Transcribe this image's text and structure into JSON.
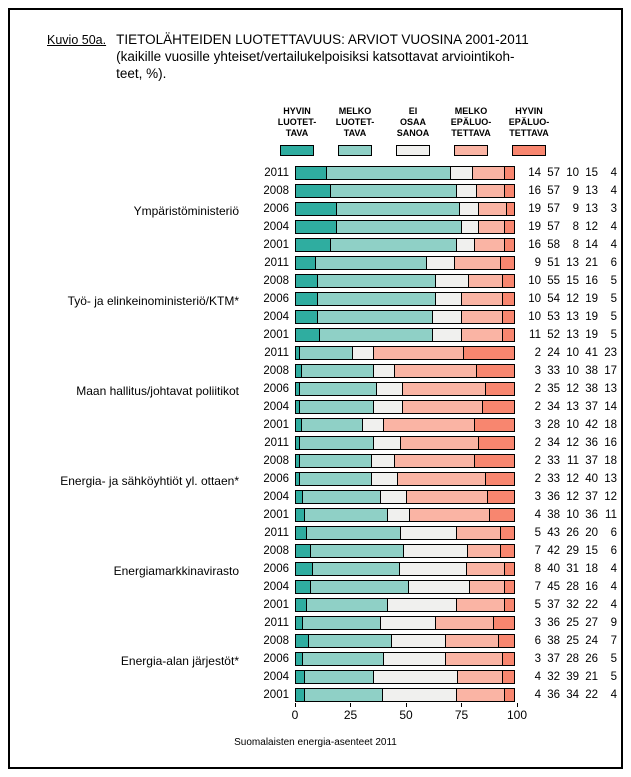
{
  "figure_label": "Kuvio 50a.",
  "title": {
    "line1": "TIETOLÄHTEIDEN LUOTETTAVUUS: ARVIOT VUOSINA 2001-2011",
    "line2": "(kaikille vuosille yhteiset/vertailukelpoisiksi katsottavat arviointikoh-",
    "line3": "teet, %)."
  },
  "footer": "Suomalaisten energia-asenteet 2011",
  "colors": {
    "hyvin_luotettava": "#2FADA0",
    "melko_luotettava": "#8FD0C6",
    "ei_osaa_sanoa": "#F0F0EE",
    "melko_epaluotettava": "#FAB4A4",
    "hyvin_epaluotettava": "#F8866F",
    "border": "#000000"
  },
  "chart_data": {
    "type": "bar",
    "orientation": "horizontal-stacked",
    "unit": "%",
    "xlim": [
      0,
      100
    ],
    "x_ticks": [
      "0",
      "25",
      "50",
      "75",
      "100"
    ],
    "grid": false,
    "legend_position": "top",
    "series_names": [
      "HYVIN LUOTETTAVA",
      "MELKO LUOTETTAVA",
      "EI OSAA SANOA",
      "MELKO EPÄLUOTETTAVA",
      "HYVIN EPÄLUOTETTAVA"
    ],
    "series_keys": [
      "hyvin-luotettava",
      "melko-luotettava",
      "ei-osaa-sanoa",
      "melko-epaluotettava",
      "hyvin-epaluotettava"
    ],
    "legend": [
      {
        "lines": [
          "HYVIN",
          "LUOTET-",
          "TAVA"
        ],
        "color": "#2FADA0"
      },
      {
        "lines": [
          "MELKO",
          "LUOTET-",
          "TAVA"
        ],
        "color": "#8FD0C6"
      },
      {
        "lines": [
          "EI",
          "OSAA",
          "SANOA"
        ],
        "color": "#F0F0EE"
      },
      {
        "lines": [
          "MELKO",
          "EPÄLUO-",
          "TETTAVA"
        ],
        "color": "#FAB4A4"
      },
      {
        "lines": [
          "HYVIN",
          "EPÄLUO-",
          "TETTAVA"
        ],
        "color": "#F8866F"
      }
    ],
    "groups": [
      {
        "label": "Ympäristöministeriö",
        "rows": [
          {
            "year": "2011",
            "values": [
              14,
              57,
              10,
              15,
              4
            ]
          },
          {
            "year": "2008",
            "values": [
              16,
              57,
              9,
              13,
              4
            ]
          },
          {
            "year": "2006",
            "values": [
              19,
              57,
              9,
              13,
              3
            ]
          },
          {
            "year": "2004",
            "values": [
              19,
              57,
              8,
              12,
              4
            ]
          },
          {
            "year": "2001",
            "values": [
              16,
              58,
              8,
              14,
              4
            ]
          }
        ]
      },
      {
        "label": "Työ- ja elinkeinoministeriö/KTM*",
        "rows": [
          {
            "year": "2011",
            "values": [
              9,
              51,
              13,
              21,
              6
            ]
          },
          {
            "year": "2008",
            "values": [
              10,
              55,
              15,
              16,
              5
            ]
          },
          {
            "year": "2006",
            "values": [
              10,
              54,
              12,
              19,
              5
            ]
          },
          {
            "year": "2004",
            "values": [
              10,
              53,
              13,
              19,
              5
            ]
          },
          {
            "year": "2001",
            "values": [
              11,
              52,
              13,
              19,
              5
            ]
          }
        ]
      },
      {
        "label": "Maan hallitus/johtavat poliitikot",
        "rows": [
          {
            "year": "2011",
            "values": [
              2,
              24,
              10,
              41,
              23
            ]
          },
          {
            "year": "2008",
            "values": [
              3,
              33,
              10,
              38,
              17
            ]
          },
          {
            "year": "2006",
            "values": [
              2,
              35,
              12,
              38,
              13
            ]
          },
          {
            "year": "2004",
            "values": [
              2,
              34,
              13,
              37,
              14
            ]
          },
          {
            "year": "2001",
            "values": [
              3,
              28,
              10,
              42,
              18
            ]
          }
        ]
      },
      {
        "label": "Energia- ja sähköyhtiöt yl. ottaen*",
        "rows": [
          {
            "year": "2011",
            "values": [
              2,
              34,
              12,
              36,
              16
            ]
          },
          {
            "year": "2008",
            "values": [
              2,
              33,
              11,
              37,
              18
            ]
          },
          {
            "year": "2006",
            "values": [
              2,
              33,
              12,
              40,
              13
            ]
          },
          {
            "year": "2004",
            "values": [
              3,
              36,
              12,
              37,
              12
            ]
          },
          {
            "year": "2001",
            "values": [
              4,
              38,
              10,
              36,
              11
            ]
          }
        ]
      },
      {
        "label": "Energiamarkkinavirasto",
        "rows": [
          {
            "year": "2011",
            "values": [
              5,
              43,
              26,
              20,
              6
            ]
          },
          {
            "year": "2008",
            "values": [
              7,
              42,
              29,
              15,
              6
            ]
          },
          {
            "year": "2006",
            "values": [
              8,
              40,
              31,
              18,
              4
            ]
          },
          {
            "year": "2004",
            "values": [
              7,
              45,
              28,
              16,
              4
            ]
          },
          {
            "year": "2001",
            "values": [
              5,
              37,
              32,
              22,
              4
            ]
          }
        ]
      },
      {
        "label": "Energia-alan järjestöt*",
        "rows": [
          {
            "year": "2011",
            "values": [
              3,
              36,
              25,
              27,
              9
            ]
          },
          {
            "year": "2008",
            "values": [
              6,
              38,
              25,
              24,
              7
            ]
          },
          {
            "year": "2006",
            "values": [
              3,
              37,
              28,
              26,
              5
            ]
          },
          {
            "year": "2004",
            "values": [
              4,
              32,
              39,
              21,
              5
            ]
          },
          {
            "year": "2001",
            "values": [
              4,
              36,
              34,
              22,
              4
            ]
          }
        ]
      }
    ]
  }
}
